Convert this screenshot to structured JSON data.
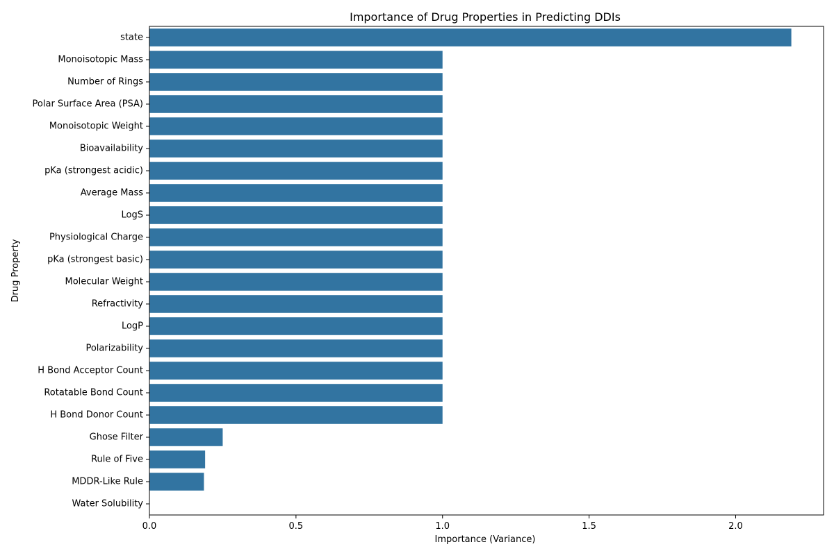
{
  "chart_data": {
    "type": "bar",
    "orientation": "horizontal",
    "title": "Importance of Drug Properties in Predicting DDIs",
    "xlabel": "Importance (Variance)",
    "ylabel": "Drug Property",
    "xlim": [
      0,
      2.3
    ],
    "xticks": [
      "0.0",
      "0.5",
      "1.0",
      "1.5",
      "2.0"
    ],
    "grid": false,
    "bar_color": "#3274a1",
    "categories": [
      "state",
      "Monoisotopic Mass",
      "Number of Rings",
      "Polar Surface Area (PSA)",
      "Monoisotopic Weight",
      "Bioavailability",
      "pKa (strongest acidic)",
      "Average Mass",
      "LogS",
      "Physiological Charge",
      "pKa (strongest basic)",
      "Molecular Weight",
      "Refractivity",
      "LogP",
      "Polarizability",
      "H Bond Acceptor Count",
      "Rotatable Bond Count",
      "H Bond Donor Count",
      "Ghose Filter",
      "Rule of Five",
      "MDDR-Like Rule",
      "Water Solubility"
    ],
    "values": [
      2.19,
      1.0,
      1.0,
      1.0,
      1.0,
      1.0,
      1.0,
      1.0,
      1.0,
      1.0,
      1.0,
      1.0,
      1.0,
      1.0,
      1.0,
      1.0,
      1.0,
      1.0,
      0.25,
      0.19,
      0.186,
      0.0
    ]
  }
}
